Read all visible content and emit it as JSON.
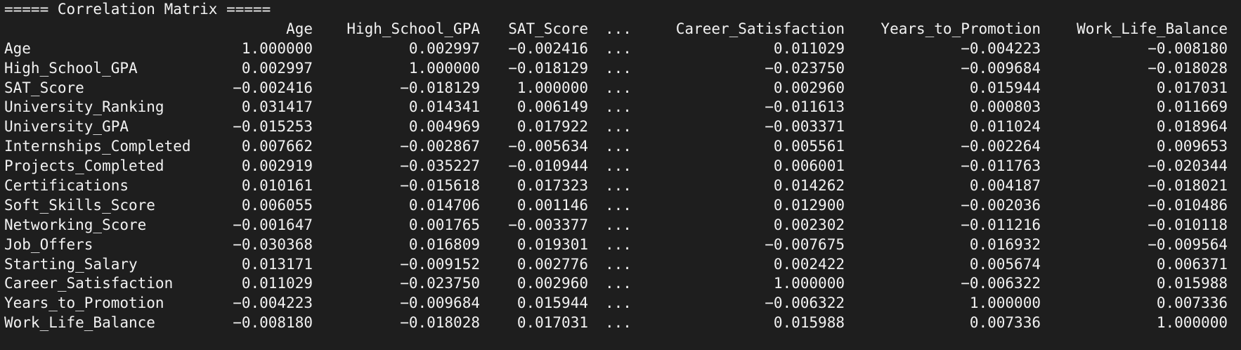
{
  "terminal": {
    "title_line": "===== Correlation Matrix =====",
    "ellipsis": "...",
    "columns": [
      "Age",
      "High_School_GPA",
      "SAT_Score",
      "Career_Satisfaction",
      "Years_to_Promotion",
      "Work_Life_Balance"
    ],
    "rows": [
      {
        "label": "Age",
        "values": [
          "1.000000",
          "0.002997",
          "−0.002416",
          "0.011029",
          "−0.004223",
          "−0.008180"
        ]
      },
      {
        "label": "High_School_GPA",
        "values": [
          "0.002997",
          "1.000000",
          "−0.018129",
          "−0.023750",
          "−0.009684",
          "−0.018028"
        ]
      },
      {
        "label": "SAT_Score",
        "values": [
          "−0.002416",
          "−0.018129",
          "1.000000",
          "0.002960",
          "0.015944",
          "0.017031"
        ]
      },
      {
        "label": "University_Ranking",
        "values": [
          "0.031417",
          "0.014341",
          "0.006149",
          "−0.011613",
          "0.000803",
          "0.011669"
        ]
      },
      {
        "label": "University_GPA",
        "values": [
          "−0.015253",
          "0.004969",
          "0.017922",
          "−0.003371",
          "0.011024",
          "0.018964"
        ]
      },
      {
        "label": "Internships_Completed",
        "values": [
          "0.007662",
          "−0.002867",
          "−0.005634",
          "0.005561",
          "−0.002264",
          "0.009653"
        ]
      },
      {
        "label": "Projects_Completed",
        "values": [
          "0.002919",
          "−0.035227",
          "−0.010944",
          "0.006001",
          "−0.011763",
          "−0.020344"
        ]
      },
      {
        "label": "Certifications",
        "values": [
          "0.010161",
          "−0.015618",
          "0.017323",
          "0.014262",
          "0.004187",
          "−0.018021"
        ]
      },
      {
        "label": "Soft_Skills_Score",
        "values": [
          "0.006055",
          "0.014706",
          "0.001146",
          "0.012900",
          "−0.002036",
          "−0.010486"
        ]
      },
      {
        "label": "Networking_Score",
        "values": [
          "−0.001647",
          "0.001765",
          "−0.003377",
          "0.002302",
          "−0.011216",
          "−0.010118"
        ]
      },
      {
        "label": "Job_Offers",
        "values": [
          "−0.030368",
          "0.016809",
          "0.019301",
          "−0.007675",
          "0.016932",
          "−0.009564"
        ]
      },
      {
        "label": "Starting_Salary",
        "values": [
          "0.013171",
          "−0.009152",
          "0.002776",
          "0.002422",
          "0.005674",
          "0.006371"
        ]
      },
      {
        "label": "Career_Satisfaction",
        "values": [
          "0.011029",
          "−0.023750",
          "0.002960",
          "1.000000",
          "−0.006322",
          "0.015988"
        ]
      },
      {
        "label": "Years_to_Promotion",
        "values": [
          "−0.004223",
          "−0.009684",
          "0.015944",
          "−0.006322",
          "1.000000",
          "0.007336"
        ]
      },
      {
        "label": "Work_Life_Balance",
        "values": [
          "−0.008180",
          "−0.018028",
          "0.017031",
          "0.015988",
          "0.007336",
          "1.000000"
        ]
      }
    ]
  }
}
